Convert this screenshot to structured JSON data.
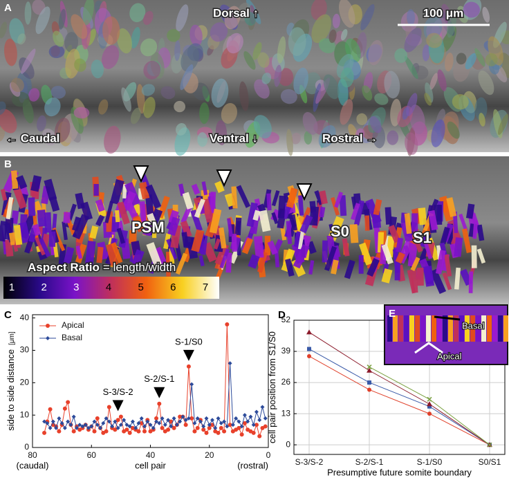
{
  "panels": {
    "a": {
      "letter": "A",
      "dorsal": "Dorsal ↑",
      "scale_bar": "100 μm",
      "caudal": "← Caudal",
      "ventral": "Ventral ↓",
      "rostral": "Rostral →"
    },
    "b": {
      "letter": "B",
      "psm": "PSM",
      "s0": "S0",
      "s1": "S1",
      "aspect_title": "Aspect Ratio",
      "aspect_formula": "= length/width",
      "colorbar_ticks": [
        1,
        2,
        3,
        4,
        5,
        6,
        7
      ]
    },
    "c": {
      "letter": "C"
    },
    "d": {
      "letter": "D"
    },
    "e": {
      "letter": "E",
      "basal": "Basal",
      "apical": "Apical"
    }
  },
  "chart_data": [
    {
      "type": "line",
      "xlabel": "cell pair",
      "ylabel": "side to side distance",
      "ylabel_unit": "[μm]",
      "x_left_note": "(caudal)",
      "x_right_note": "(rostral)",
      "xlim": [
        80,
        0
      ],
      "xticks": [
        80,
        60,
        40,
        20,
        0
      ],
      "ylim": [
        0,
        41
      ],
      "yticks": [
        0,
        10,
        20,
        30,
        40
      ],
      "legend": "upper left",
      "x": [
        76,
        75,
        74,
        73,
        72,
        71,
        70,
        69,
        68,
        67,
        66,
        65,
        64,
        63,
        62,
        61,
        60,
        59,
        58,
        57,
        56,
        55,
        54,
        53,
        52,
        51,
        50,
        49,
        48,
        47,
        46,
        45,
        44,
        43,
        42,
        41,
        40,
        39,
        38,
        37,
        36,
        35,
        34,
        33,
        32,
        31,
        30,
        29,
        28,
        27,
        26,
        25,
        24,
        23,
        22,
        21,
        20,
        19,
        18,
        17,
        16,
        15,
        14,
        13,
        12,
        11,
        10,
        9,
        8,
        7,
        6,
        5,
        4,
        3,
        2,
        1
      ],
      "series": [
        {
          "name": "Apical",
          "color": "#e8412b",
          "marker": "circle",
          "values": [
            4.5,
            8,
            11.8,
            7,
            6.5,
            5,
            7,
            12,
            14,
            7,
            5,
            6.5,
            5.5,
            6,
            7,
            5.5,
            6.5,
            5,
            9,
            6,
            4.5,
            5,
            12.5,
            6,
            5.5,
            8.5,
            9.5,
            5,
            5.5,
            4.5,
            6,
            5.5,
            5,
            7.5,
            5,
            8.5,
            5,
            5.5,
            9,
            13.5,
            6,
            5,
            5.5,
            8,
            6,
            7,
            9.5,
            9.5,
            7,
            25,
            9,
            5,
            6,
            8.5,
            5.5,
            4.5,
            6,
            7,
            5,
            4.5,
            6,
            5,
            38,
            7,
            5,
            5.5,
            6,
            4,
            7.5,
            5.5,
            5,
            4.5,
            7,
            3.5,
            6,
            6.5
          ]
        },
        {
          "name": "Basal",
          "color": "#2c4a9a",
          "marker": "diamond",
          "values": [
            8,
            7.5,
            6,
            8,
            6,
            9,
            7.5,
            6,
            8,
            7,
            9.5,
            6,
            7,
            6.5,
            7,
            6,
            6.5,
            8,
            7,
            6,
            7.5,
            9,
            8,
            6.5,
            8,
            6,
            7,
            8.5,
            7,
            6.5,
            8,
            6,
            7.5,
            9,
            6.5,
            8,
            7,
            6,
            8,
            7.5,
            9,
            7,
            8.5,
            6.5,
            9,
            7,
            8,
            9.5,
            8.5,
            9,
            19.5,
            7.5,
            9,
            8,
            6.5,
            9,
            7,
            8.5,
            6,
            9,
            7.5,
            8,
            6.5,
            26,
            7,
            9,
            8,
            6.5,
            10,
            8,
            9.5,
            7,
            11,
            8.5,
            12.5,
            9
          ]
        }
      ],
      "annotations": [
        {
          "text": "S-3/S-2",
          "x": 51
        },
        {
          "text": "S-2/S-1",
          "x": 37
        },
        {
          "text": "S-1/S0",
          "x": 27
        }
      ]
    },
    {
      "type": "line",
      "xlabel": "Presumptive future somite boundary",
      "ylabel": "cell pair position from S1/S0",
      "categories": [
        "S-3/S-2",
        "S-2/S-1",
        "S-1/S0",
        "S0/S1"
      ],
      "ylim": [
        -4,
        52
      ],
      "yticks": [
        0,
        13,
        26,
        39,
        52
      ],
      "grid": true,
      "series": [
        {
          "color": "#e0402a",
          "marker": "circle",
          "values": [
            37,
            23,
            13,
            0
          ]
        },
        {
          "color": "#3a5aa8",
          "marker": "square",
          "values": [
            40,
            26,
            16,
            0
          ]
        },
        {
          "color": "#8b1a2a",
          "marker": "triangle",
          "values": [
            47,
            31,
            17,
            0
          ]
        },
        {
          "color": "#7aa040",
          "marker": "x",
          "values": [
            null,
            32.5,
            19,
            0
          ]
        }
      ]
    }
  ]
}
